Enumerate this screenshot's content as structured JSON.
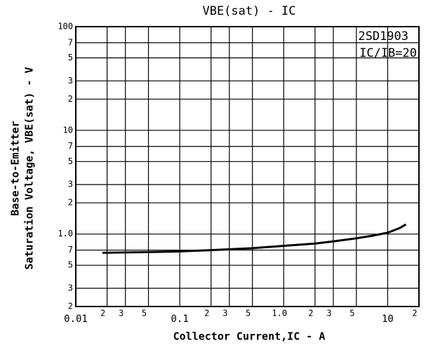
{
  "chart_data": {
    "type": "line",
    "title": "VBE(sat) - IC",
    "annotations": [
      "2SD1903",
      "IC/IB=20"
    ],
    "y_label": [
      "Base-to-Emitter",
      "Saturation Voltage, VBE(sat) - V"
    ],
    "x_label": "Collector Current,IC - A",
    "log_x": true,
    "log_y": true,
    "grid": true,
    "xlim": [
      0.01,
      20
    ],
    "ylim": [
      0.2,
      100
    ],
    "xticks": [
      0.01,
      {
        "value": 0.02,
        "label": "2"
      },
      {
        "value": 0.03,
        "label": "3"
      },
      {
        "value": 0.05,
        "label": "5"
      },
      0.1,
      {
        "value": 0.2,
        "label": "2"
      },
      {
        "value": 0.3,
        "label": "3"
      },
      {
        "value": 0.5,
        "label": "5"
      },
      {
        "value": 1,
        "label": "1.0"
      },
      {
        "value": 2,
        "label": "2"
      },
      {
        "value": 3,
        "label": "3"
      },
      {
        "value": 5,
        "label": "5"
      },
      10,
      {
        "value": 20,
        "label": "2"
      }
    ],
    "yticks": [
      {
        "value": 0.2,
        "label": "2"
      },
      {
        "value": 0.3,
        "label": "3"
      },
      {
        "value": 0.5,
        "label": "5"
      },
      {
        "value": 0.7,
        "label": "7"
      },
      {
        "value": 1,
        "label": "1.0"
      },
      {
        "value": 2,
        "label": "2"
      },
      {
        "value": 3,
        "label": "3"
      },
      {
        "value": 5,
        "label": "5"
      },
      {
        "value": 7,
        "label": "7"
      },
      10,
      {
        "value": 20,
        "label": "2"
      },
      {
        "value": 30,
        "label": "3"
      },
      {
        "value": 50,
        "label": "5"
      },
      {
        "value": 70,
        "label": "7"
      },
      100
    ],
    "series": [
      {
        "color": "#000000",
        "x": [
          0.018,
          0.03,
          0.05,
          0.1,
          0.2,
          0.5,
          1,
          2,
          3,
          5,
          7,
          10,
          13,
          15
        ],
        "values": [
          0.66,
          0.665,
          0.67,
          0.68,
          0.7,
          0.73,
          0.77,
          0.81,
          0.85,
          0.91,
          0.96,
          1.03,
          1.14,
          1.24
        ]
      }
    ]
  }
}
